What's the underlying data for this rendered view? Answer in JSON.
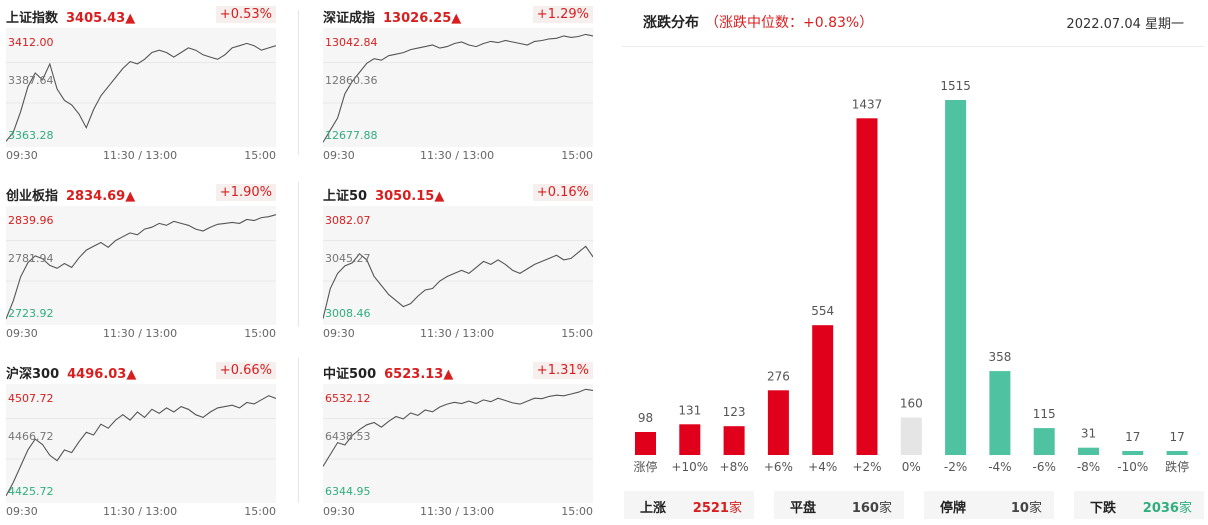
{
  "indices": [
    {
      "name": "上证指数",
      "price": "3405.43",
      "arrow": "▲",
      "change": "+0.53%",
      "y_top": "3412.00",
      "y_mid": "3387.64",
      "y_bot": "3363.28",
      "series": [
        3364,
        3368,
        3377,
        3388,
        3394,
        3391,
        3398,
        3387,
        3382,
        3380,
        3376,
        3370,
        3378,
        3384,
        3388,
        3392,
        3396,
        3399,
        3398,
        3400,
        3403,
        3404,
        3403,
        3401,
        3403,
        3405,
        3404,
        3402,
        3401,
        3400,
        3402,
        3405,
        3406,
        3407,
        3406,
        3404,
        3405,
        3406
      ],
      "x_start": "09:30",
      "x_mid": "11:30 / 13:00",
      "x_end": "15:00"
    },
    {
      "name": "深证成指",
      "price": "13026.25",
      "arrow": "▲",
      "change": "+1.29%",
      "y_top": "13042.84",
      "y_mid": "12860.36",
      "y_bot": "12677.88",
      "series": [
        12680,
        12720,
        12760,
        12840,
        12880,
        12910,
        12940,
        12955,
        12950,
        12965,
        12970,
        12975,
        12985,
        12990,
        12995,
        13000,
        12990,
        12995,
        13005,
        13010,
        13000,
        12995,
        13005,
        13012,
        13008,
        13015,
        13010,
        13005,
        13000,
        13012,
        13015,
        13020,
        13022,
        13030,
        13025,
        13028,
        13035,
        13030
      ],
      "x_start": "09:30",
      "x_mid": "11:30 / 13:00",
      "x_end": "15:00"
    },
    {
      "name": "创业板指",
      "price": "2834.69",
      "arrow": "▲",
      "change": "+1.90%",
      "y_top": "2839.96",
      "y_mid": "2781.94",
      "y_bot": "2723.92",
      "series": [
        2726,
        2745,
        2770,
        2785,
        2792,
        2789,
        2782,
        2779,
        2784,
        2780,
        2790,
        2798,
        2802,
        2806,
        2801,
        2808,
        2812,
        2816,
        2814,
        2820,
        2822,
        2826,
        2824,
        2828,
        2826,
        2824,
        2820,
        2818,
        2822,
        2825,
        2826,
        2827,
        2826,
        2830,
        2829,
        2832,
        2833,
        2835
      ],
      "x_start": "09:30",
      "x_mid": "11:30 / 13:00",
      "x_end": "15:00"
    },
    {
      "name": "上证50",
      "price": "3050.15",
      "arrow": "▲",
      "change": "+0.16%",
      "y_top": "3082.07",
      "y_mid": "3045.27",
      "y_bot": "3008.46",
      "series": [
        3010,
        3030,
        3040,
        3045,
        3047,
        3053,
        3049,
        3038,
        3032,
        3026,
        3022,
        3018,
        3020,
        3025,
        3029,
        3030,
        3035,
        3038,
        3040,
        3042,
        3040,
        3044,
        3048,
        3046,
        3049,
        3046,
        3042,
        3040,
        3043,
        3046,
        3048,
        3050,
        3052,
        3049,
        3050,
        3054,
        3058,
        3051
      ],
      "x_start": "09:30",
      "x_mid": "11:30 / 13:00",
      "x_end": "15:00"
    },
    {
      "name": "沪深300",
      "price": "4496.03",
      "arrow": "▲",
      "change": "+0.66%",
      "y_top": "4507.72",
      "y_mid": "4466.72",
      "y_bot": "4425.72",
      "series": [
        4428,
        4438,
        4450,
        4462,
        4470,
        4466,
        4458,
        4454,
        4462,
        4460,
        4468,
        4475,
        4473,
        4481,
        4478,
        4484,
        4488,
        4484,
        4490,
        4486,
        4492,
        4489,
        4493,
        4490,
        4494,
        4492,
        4488,
        4486,
        4490,
        4493,
        4494,
        4495,
        4493,
        4497,
        4496,
        4499,
        4502,
        4500
      ],
      "x_start": "09:30",
      "x_mid": "11:30 / 13:00",
      "x_end": "15:00"
    },
    {
      "name": "中证500",
      "price": "6523.13",
      "arrow": "▲",
      "change": "+1.31%",
      "y_top": "6532.12",
      "y_mid": "6438.53",
      "y_bot": "6344.95",
      "series": [
        6400,
        6420,
        6440,
        6436,
        6452,
        6462,
        6470,
        6474,
        6466,
        6476,
        6484,
        6480,
        6490,
        6486,
        6495,
        6492,
        6500,
        6505,
        6508,
        6506,
        6510,
        6506,
        6512,
        6509,
        6515,
        6511,
        6507,
        6505,
        6510,
        6515,
        6514,
        6518,
        6520,
        6519,
        6522,
        6525,
        6530,
        6528
      ],
      "x_start": "09:30",
      "x_mid": "11:30 / 13:00",
      "x_end": "15:00"
    }
  ],
  "distribution": {
    "title": "涨跌分布",
    "median": "（涨跌中位数：+0.83%）",
    "date": "2022.07.04 星期一",
    "colors": {
      "up": "#e0001b",
      "flat": "#e5e5e5",
      "down": "#4fc3a1"
    },
    "chart_data": {
      "type": "bar",
      "categories": [
        "涨停",
        "+10%",
        "+8%",
        "+6%",
        "+4%",
        "+2%",
        "0%",
        "-2%",
        "-4%",
        "-6%",
        "-8%",
        "-10%",
        "跌停"
      ],
      "values": [
        98,
        131,
        123,
        276,
        554,
        1437,
        160,
        1515,
        358,
        115,
        31,
        17,
        17
      ],
      "value_labels": [
        "98",
        "131",
        "123",
        "276",
        "554",
        "1437",
        "160",
        "1515",
        "358",
        "115",
        "31",
        "17",
        "17"
      ],
      "kinds": [
        "up",
        "up",
        "up",
        "up",
        "up",
        "up",
        "flat",
        "down",
        "down",
        "down",
        "down",
        "down",
        "down"
      ],
      "ylim": [
        0,
        1515
      ]
    },
    "stats": [
      {
        "label": "上涨",
        "value": "2521",
        "unit": "家",
        "color": "#d81e1e"
      },
      {
        "label": "平盘",
        "value": "160",
        "unit": "家",
        "color": "#444444"
      },
      {
        "label": "停牌",
        "value": "10",
        "unit": "家",
        "color": "#444444"
      },
      {
        "label": "下跌",
        "value": "2036",
        "unit": "家",
        "color": "#2fae7e"
      }
    ]
  }
}
